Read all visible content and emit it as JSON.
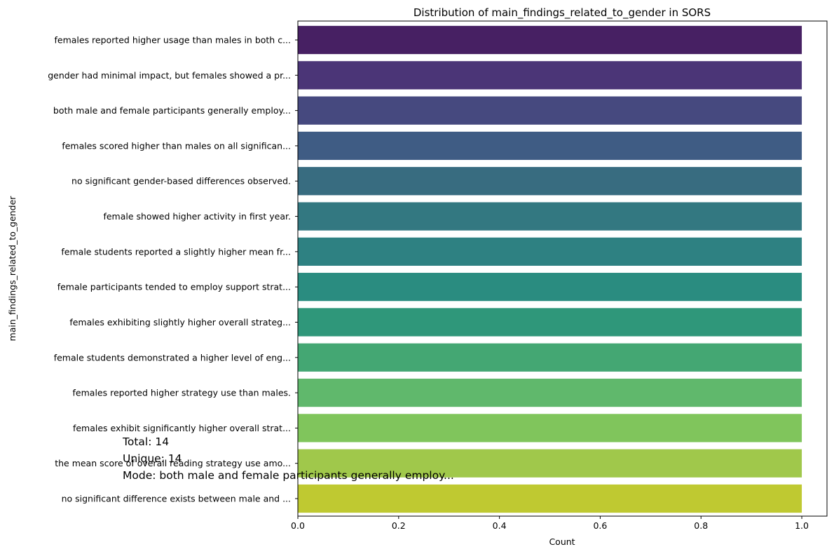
{
  "chart_data": {
    "type": "bar",
    "orientation": "horizontal",
    "title": "Distribution of main_findings_related_to_gender in SORS",
    "xlabel": "Count",
    "ylabel": "main_findings_related_to_gender",
    "xlim": [
      0,
      1.05
    ],
    "xticks": [
      "0.0",
      "0.2",
      "0.4",
      "0.6",
      "0.8",
      "1.0"
    ],
    "grid": false,
    "categories": [
      "females reported higher usage than males in both c...",
      "gender had minimal impact, but females showed a pr...",
      "both male and female participants generally employ...",
      "females scored higher than males on all significan...",
      "no significant gender-based differences observed.",
      "female showed higher activity in first year.",
      "female students reported a slightly higher mean fr...",
      "female participants tended to employ support strat...",
      "females exhibiting slightly higher overall strateg...",
      "female students demonstrated a higher level of eng...",
      "females reported higher strategy use than males.",
      "females exhibit significantly higher overall strat...",
      "the mean score of overall reading strategy use amo...",
      "no significant difference exists between male and ..."
    ],
    "values": [
      1,
      1,
      1,
      1,
      1,
      1,
      1,
      1,
      1,
      1,
      1,
      1,
      1,
      1
    ],
    "colors": [
      "#472063",
      "#4b3577",
      "#46497f",
      "#3f5c84",
      "#386c80",
      "#337881",
      "#2e8182",
      "#2a8c80",
      "#2f977a",
      "#44a773",
      "#60b86c",
      "#80c55c",
      "#a0c84b",
      "#bfc931"
    ]
  },
  "stats": {
    "total": "Total: 14",
    "unique": "Unique: 14",
    "mode": "Mode: both male and female participants generally employ..."
  }
}
